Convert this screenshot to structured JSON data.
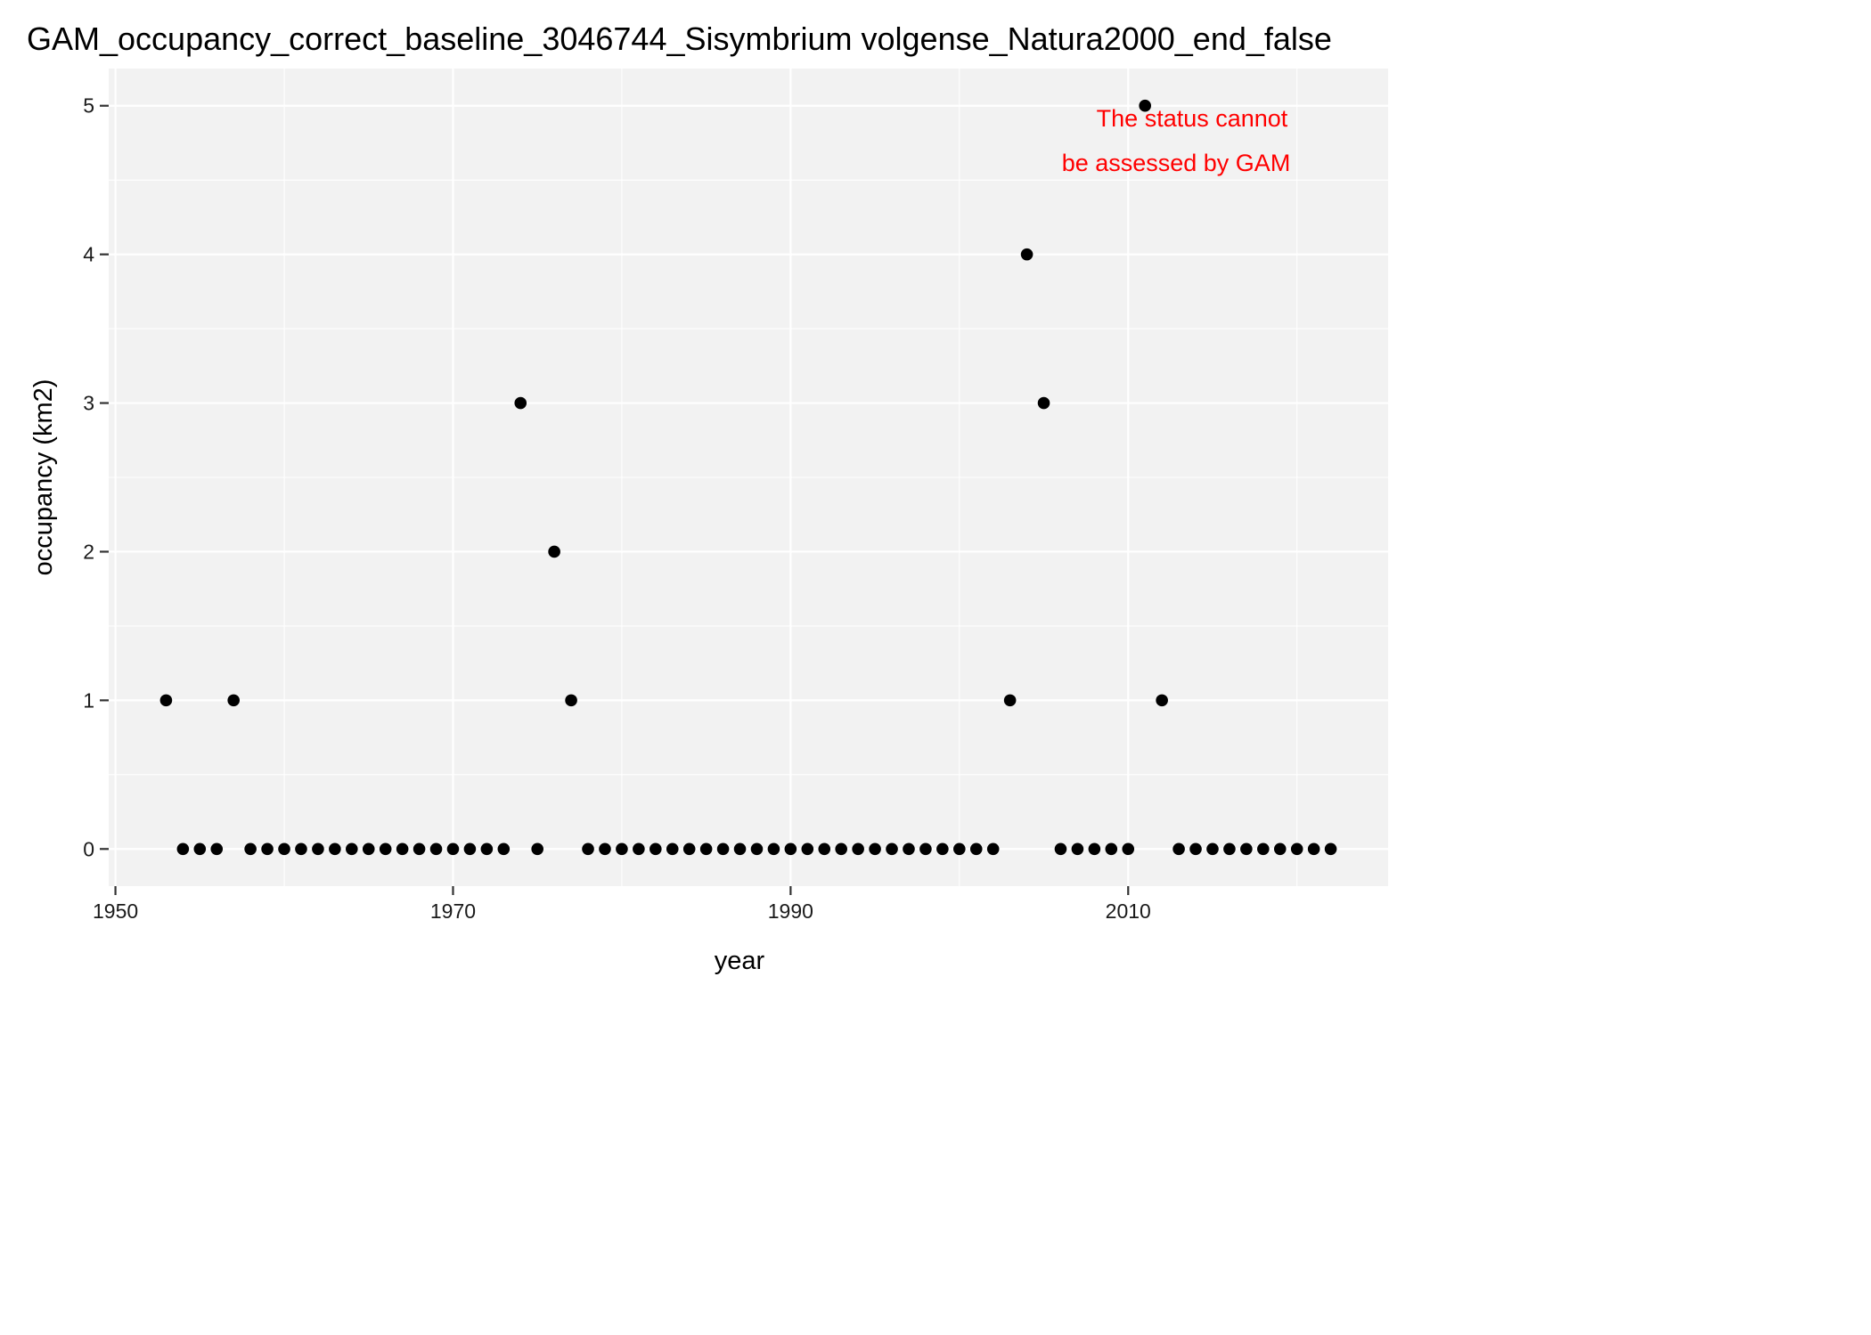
{
  "chart_data": {
    "type": "scatter",
    "title": "GAM_occupancy_correct_baseline_3046744_Sisymbrium volgense_Natura2000_end_false",
    "xlabel": "year",
    "ylabel": "occupancy (km2)",
    "xlim": [
      1949.6,
      2025.4
    ],
    "ylim": [
      -0.25,
      5.25
    ],
    "x_ticks": [
      1950,
      1970,
      1990,
      2010
    ],
    "x_tick_labels": [
      "1950",
      "1970",
      "1990",
      "2010"
    ],
    "x_minor_ticks": [
      1960,
      1980,
      2000,
      2020
    ],
    "y_ticks": [
      0,
      1,
      2,
      3,
      4,
      5
    ],
    "y_tick_labels": [
      "0",
      "1",
      "2",
      "3",
      "4",
      "5"
    ],
    "y_minor_ticks": [
      0.5,
      1.5,
      2.5,
      3.5,
      4.5
    ],
    "grid": true,
    "annotation": {
      "line1": "The status cannot",
      "line2": "be assessed by GAM",
      "color": "#ff0000"
    },
    "point_color": "#000000",
    "panel_color": "#f2f2f2",
    "series": [
      {
        "x": [
          1953,
          1954,
          1955,
          1956,
          1957,
          1958,
          1959,
          1960,
          1961,
          1962,
          1963,
          1964,
          1965,
          1966,
          1967,
          1968,
          1969,
          1970,
          1971,
          1972,
          1973,
          1974,
          1975,
          1976,
          1977,
          1978,
          1979,
          1980,
          1981,
          1982,
          1983,
          1984,
          1985,
          1986,
          1987,
          1988,
          1989,
          1990,
          1991,
          1992,
          1993,
          1994,
          1995,
          1996,
          1997,
          1998,
          1999,
          2000,
          2001,
          2002,
          2003,
          2004,
          2005,
          2006,
          2007,
          2008,
          2009,
          2010,
          2011,
          2012,
          2013,
          2014,
          2015,
          2016,
          2017,
          2018,
          2019,
          2020,
          2021,
          2022
        ],
        "y": [
          1,
          0,
          0,
          0,
          1,
          0,
          0,
          0,
          0,
          0,
          0,
          0,
          0,
          0,
          0,
          0,
          0,
          0,
          0,
          0,
          0,
          3,
          0,
          2,
          1,
          0,
          0,
          0,
          0,
          0,
          0,
          0,
          0,
          0,
          0,
          0,
          0,
          0,
          0,
          0,
          0,
          0,
          0,
          0,
          0,
          0,
          0,
          0,
          0,
          0,
          1,
          4,
          3,
          0,
          0,
          0,
          0,
          0,
          5,
          1,
          0,
          0,
          0,
          0,
          0,
          0,
          0,
          0,
          0,
          0
        ]
      }
    ]
  }
}
